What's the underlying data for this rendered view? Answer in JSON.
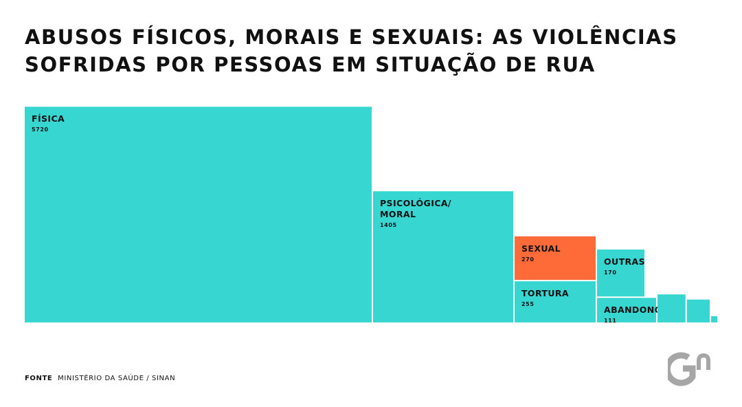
{
  "title": {
    "line1": "ABUSOS FÍSICOS, MORAIS E SEXUAIS: AS VIOLÊNCIAS",
    "line2": "SOFRIDAS POR PESSOAS EM SITUAÇÃO DE RUA"
  },
  "source": {
    "label": "FONTE",
    "text": "MINISTÉRIO DA SAÚDE / SINAN"
  },
  "colors": {
    "teal": "#37d6d1",
    "orange": "#ff6a39",
    "logo_gray": "#a6a6a6"
  },
  "logo": {
    "name": "gn-logo",
    "letters": "Gn"
  },
  "chart_data": {
    "type": "treemap",
    "title": "ABUSOS FÍSICOS, MORAIS E SEXUAIS: AS VIOLÊNCIAS SOFRIDAS POR PESSOAS EM SITUAÇÃO DE RUA",
    "items": [
      {
        "label": "FÍSICA",
        "value": 5720,
        "color": "#37d6d1"
      },
      {
        "label": "PSICOLÓGICA/ MORAL",
        "value": 1405,
        "color": "#37d6d1"
      },
      {
        "label": "SEXUAL",
        "value": 270,
        "color": "#ff6a39"
      },
      {
        "label": "TORTURA",
        "value": 255,
        "color": "#37d6d1"
      },
      {
        "label": "OUTRAS",
        "value": 170,
        "color": "#37d6d1"
      },
      {
        "label": "ABANDONO",
        "value": 111,
        "color": "#37d6d1"
      },
      {
        "label": "",
        "value": 60,
        "color": "#37d6d1"
      },
      {
        "label": "",
        "value": 40,
        "color": "#37d6d1"
      },
      {
        "label": "",
        "value": 3,
        "color": "#37d6d1"
      }
    ]
  }
}
